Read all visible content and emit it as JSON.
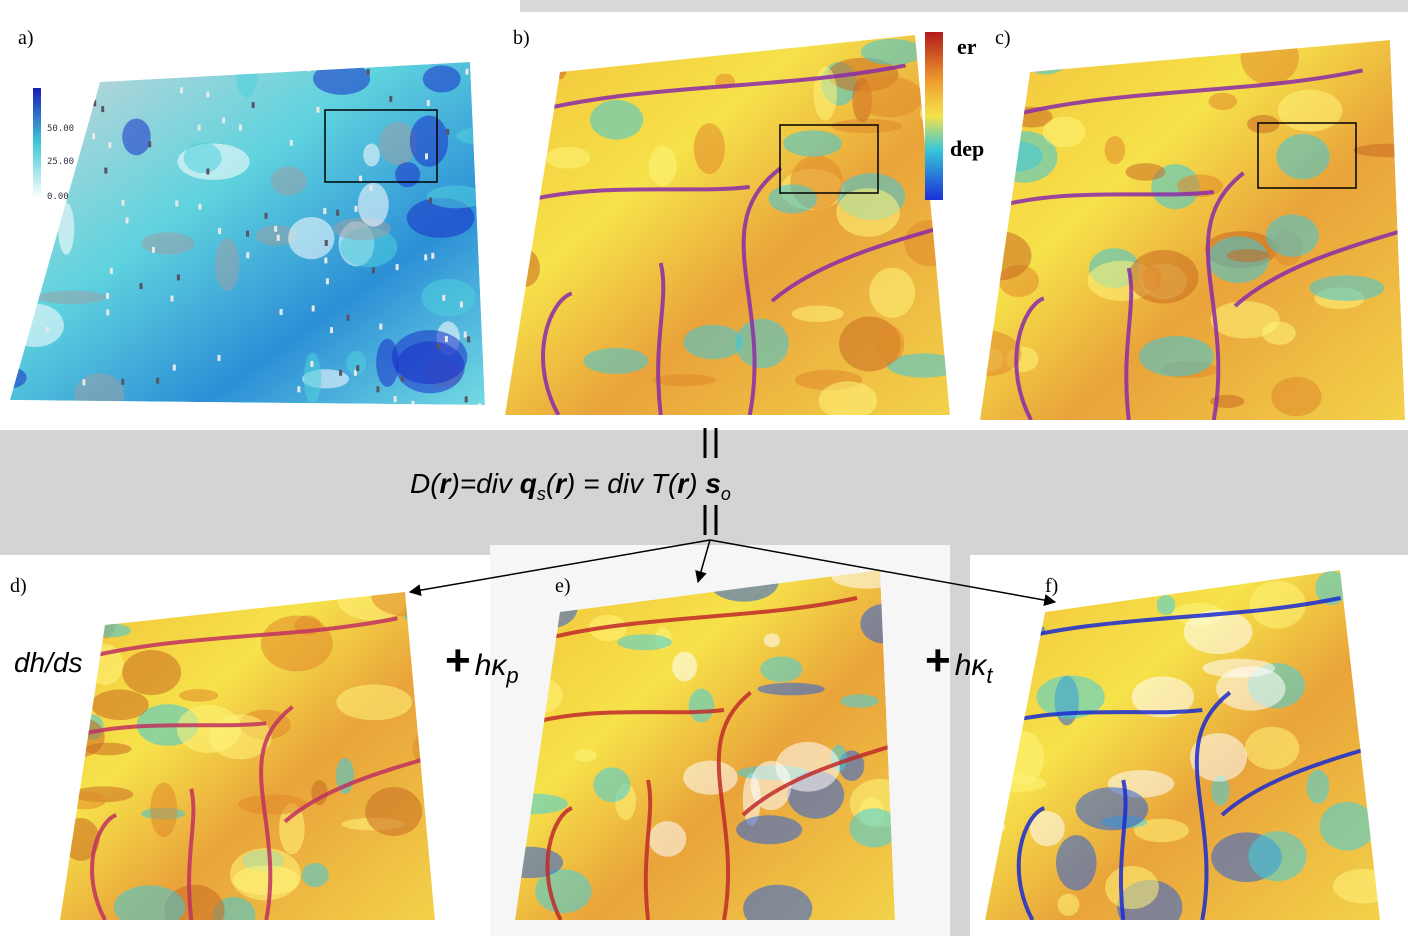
{
  "panels": {
    "a": {
      "label": "a)",
      "colorbar_labels": [
        "50.00",
        "25.00",
        "0.00"
      ]
    },
    "b": {
      "label": "b)"
    },
    "c": {
      "label": "c)"
    },
    "d": {
      "label": "d)"
    },
    "e": {
      "label": "e)"
    },
    "f": {
      "label": "f)"
    }
  },
  "legend": {
    "top": "er",
    "bottom": "dep"
  },
  "equation": [
    "D(",
    "r",
    ")=div ",
    "q",
    "s",
    "(",
    "r",
    ") = div ",
    "T(",
    "r",
    ") ",
    "s",
    "o"
  ],
  "terms": {
    "d": "dh/ds",
    "e": {
      "sign": "+",
      "symbol": "hκ",
      "subscript": "p"
    },
    "f": {
      "sign": "+",
      "symbol": "hκ",
      "subscript": "t"
    }
  }
}
